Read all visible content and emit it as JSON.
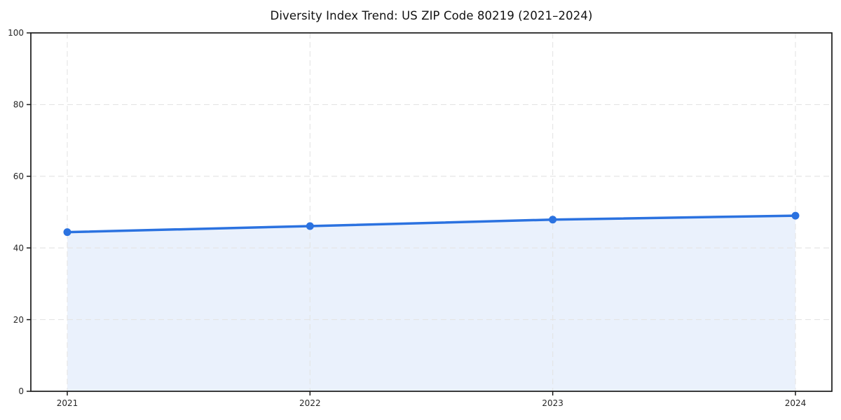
{
  "figure": {
    "background_color": "#ffffff"
  },
  "chart_data": {
    "type": "area",
    "title": "Diversity Index Trend: US ZIP Code 80219 (2021–2024)",
    "xlabel": "",
    "ylabel": "",
    "categories": [
      "2021",
      "2022",
      "2023",
      "2024"
    ],
    "series": [
      {
        "name": "Diversity Index",
        "values": [
          44.4,
          46.1,
          47.9,
          49.0
        ]
      }
    ],
    "ylim": [
      0,
      100
    ],
    "yticks": [
      0,
      20,
      40,
      60,
      80,
      100
    ],
    "grid": true,
    "grid_style": "dashed",
    "legend_position": "none",
    "line_color": "#2b72e0",
    "marker_color": "#2b72e0",
    "fill_color": "#eaf1fc",
    "grid_color": "#e4e4e4",
    "spine_color": "#1a1a1a",
    "tick_label_color": "#262626",
    "marker": "circle"
  }
}
